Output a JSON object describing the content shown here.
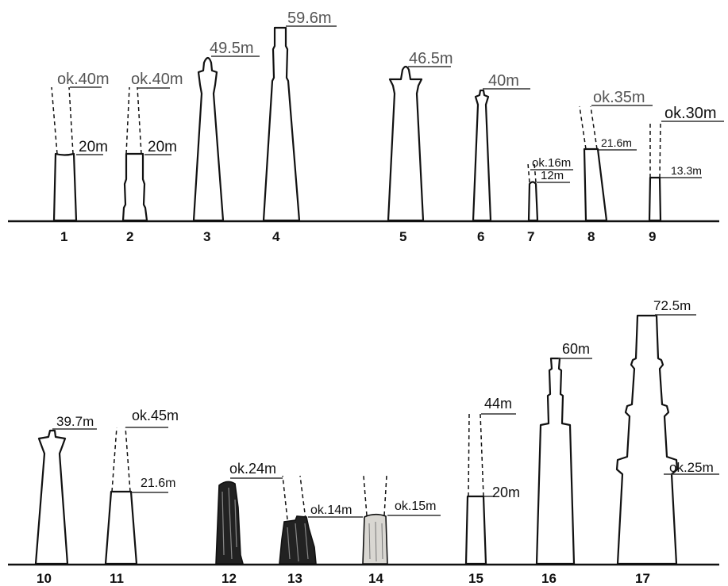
{
  "towers": [
    {
      "number": "1",
      "labels": [
        "ok.40m",
        "20m"
      ]
    },
    {
      "number": "2",
      "labels": [
        "ok.40m",
        "20m"
      ]
    },
    {
      "number": "3",
      "labels": [
        "49.5m"
      ]
    },
    {
      "number": "4",
      "labels": [
        "59.6m"
      ]
    },
    {
      "number": "5",
      "labels": [
        "46.5m"
      ]
    },
    {
      "number": "6",
      "labels": [
        "40m"
      ]
    },
    {
      "number": "7",
      "labels": [
        "ok.16m",
        "12m"
      ]
    },
    {
      "number": "8",
      "labels": [
        "ok.35m",
        "21.6m"
      ]
    },
    {
      "number": "9",
      "labels": [
        "ok.30m",
        "13.3m"
      ]
    },
    {
      "number": "10",
      "labels": [
        "39.7m"
      ]
    },
    {
      "number": "11",
      "labels": [
        "ok.45m",
        "21.6m"
      ]
    },
    {
      "number": "12",
      "labels": [
        "ok.24m"
      ]
    },
    {
      "number": "13",
      "labels": [
        "ok.14m"
      ]
    },
    {
      "number": "14",
      "labels": [
        "ok.15m"
      ]
    },
    {
      "number": "15",
      "labels": [
        "44m",
        "20m"
      ]
    },
    {
      "number": "16",
      "labels": [
        "60m"
      ]
    },
    {
      "number": "17",
      "labels": [
        "72.5m",
        "ok.25m"
      ]
    }
  ]
}
